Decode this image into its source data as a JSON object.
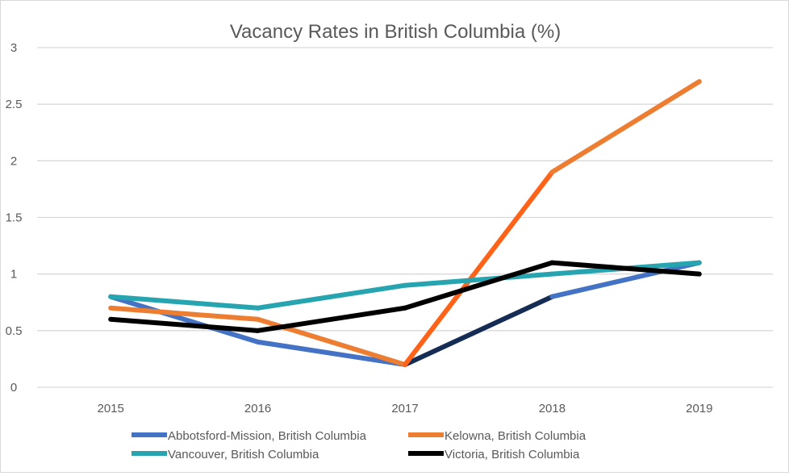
{
  "chart_data": {
    "type": "line",
    "title": "Vacancy Rates in British Columbia (%)",
    "xlabel": "",
    "ylabel": "",
    "categories": [
      "2015",
      "2016",
      "2017",
      "2018",
      "2019"
    ],
    "ylim": [
      0,
      3
    ],
    "yticks": [
      "0",
      "0.5",
      "1",
      "1.5",
      "2",
      "2.5",
      "3"
    ],
    "grid": true,
    "legend_position": "bottom",
    "series": [
      {
        "name": "Abbotsford-Mission, British Columbia",
        "values": [
          0.8,
          0.4,
          0.2,
          0.8,
          1.1
        ],
        "color": "#4472C4",
        "highlight_segment_color": "#152D55"
      },
      {
        "name": "Kelowna, British Columbia",
        "values": [
          0.7,
          0.6,
          0.2,
          1.9,
          2.7
        ],
        "color": "#ED7D31",
        "highlight_segment_color": "#FF6319"
      },
      {
        "name": "Vancouver, British Columbia",
        "values": [
          0.8,
          0.7,
          0.9,
          1.0,
          1.1
        ],
        "color": "#26A5B0"
      },
      {
        "name": "Victoria, British Columbia",
        "values": [
          0.6,
          0.5,
          0.7,
          1.1,
          1.0
        ],
        "color": "#000000"
      }
    ]
  }
}
